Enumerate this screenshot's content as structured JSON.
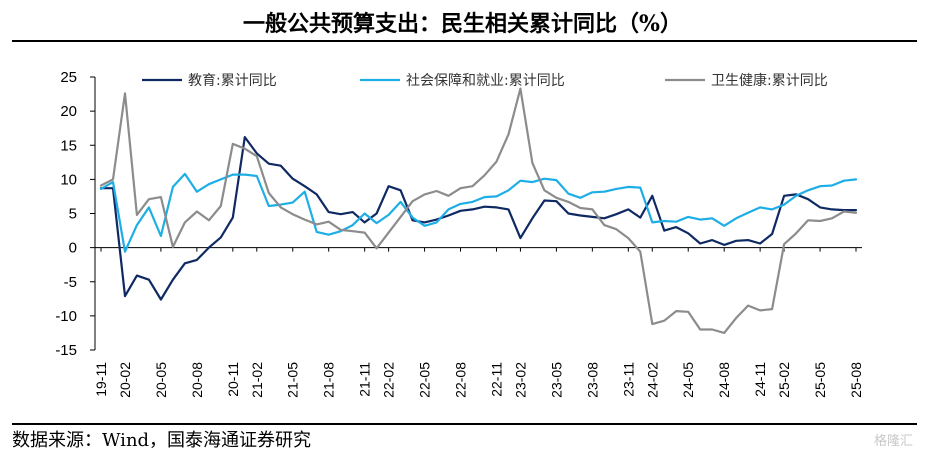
{
  "title": "一般公共预算支出：民生相关累计同比（%）",
  "source": "数据来源：Wind，国泰海通证券研究",
  "watermark": "格隆汇",
  "chart_data": {
    "type": "line",
    "title": "一般公共预算支出：民生相关累计同比（%）",
    "ylim": [
      -15,
      25
    ],
    "yticks": [
      -15,
      -10,
      -5,
      0,
      5,
      10,
      15,
      20,
      25
    ],
    "grid": false,
    "legend_position": "top",
    "x": [
      "19-11",
      "19-12",
      "20-02",
      "20-03",
      "20-04",
      "20-05",
      "20-06",
      "20-07",
      "20-08",
      "20-09",
      "20-10",
      "20-11",
      "20-12",
      "21-02",
      "21-03",
      "21-04",
      "21-05",
      "21-06",
      "21-07",
      "21-08",
      "21-09",
      "21-10",
      "21-11",
      "21-12",
      "22-02",
      "22-03",
      "22-04",
      "22-05",
      "22-06",
      "22-07",
      "22-08",
      "22-09",
      "22-10",
      "22-11",
      "22-12",
      "23-02",
      "23-03",
      "23-04",
      "23-05",
      "23-06",
      "23-07",
      "23-08",
      "23-09",
      "23-10",
      "23-11",
      "23-12",
      "24-02",
      "24-03",
      "24-04",
      "24-05",
      "24-06",
      "24-07",
      "24-08",
      "24-09",
      "24-10",
      "24-11",
      "24-12",
      "25-02",
      "25-03",
      "25-04",
      "25-05",
      "25-06",
      "25-07",
      "25-08"
    ],
    "xtick_labels": [
      "19-11",
      "20-02",
      "20-05",
      "20-08",
      "20-11",
      "21-02",
      "21-05",
      "21-08",
      "21-11",
      "22-02",
      "22-05",
      "22-08",
      "22-11",
      "23-02",
      "23-05",
      "23-08",
      "23-11",
      "24-02",
      "24-05",
      "24-08",
      "24-11",
      "25-02",
      "25-05",
      "25-08"
    ],
    "series": [
      {
        "name": "教育:累计同比",
        "color": "#0f2a63",
        "values": [
          8.7,
          8.7,
          -7.1,
          -4.1,
          -4.7,
          -7.6,
          -4.7,
          -2.3,
          -1.8,
          0,
          1.5,
          4.4,
          16.2,
          13.8,
          12.3,
          12.0,
          10.1,
          9.0,
          7.8,
          5.2,
          4.9,
          5.2,
          3.7,
          5.0,
          9.0,
          8.4,
          4.0,
          3.7,
          4.1,
          4.7,
          5.4,
          5.6,
          6.0,
          5.9,
          5.6,
          1.4,
          4.3,
          6.9,
          6.8,
          5.0,
          4.7,
          4.5,
          4.3,
          4.9,
          5.6,
          4.4,
          7.6,
          2.5,
          3.0,
          2.1,
          0.6,
          1.1,
          0.4,
          1.0,
          1.1,
          0.6,
          2.0,
          7.6,
          7.8,
          7.1,
          5.9,
          5.6,
          5.5,
          5.5
        ]
      },
      {
        "name": "社会保障和就业:累计同比",
        "color": "#1eaee6",
        "values": [
          8.6,
          9.6,
          -0.6,
          3.3,
          5.9,
          1.7,
          8.9,
          10.8,
          8.2,
          9.3,
          10.0,
          10.7,
          10.7,
          10.5,
          6.1,
          6.3,
          6.6,
          8.2,
          2.3,
          1.9,
          2.4,
          3.3,
          5.0,
          3.6,
          4.8,
          6.7,
          4.4,
          3.2,
          3.7,
          5.6,
          6.4,
          6.7,
          7.4,
          7.5,
          8.4,
          9.8,
          9.6,
          10.1,
          9.9,
          7.9,
          7.3,
          8.1,
          8.2,
          8.6,
          8.9,
          8.8,
          3.7,
          3.9,
          3.8,
          4.5,
          4.1,
          4.3,
          3.2,
          4.3,
          5.1,
          5.9,
          5.6,
          6.3,
          7.6,
          8.4,
          9.0,
          9.1,
          9.8,
          10.0
        ]
      },
      {
        "name": "卫生健康:累计同比",
        "color": "#8c8c8c",
        "values": [
          9.1,
          10.0,
          22.6,
          4.8,
          7.1,
          7.4,
          0.1,
          3.7,
          5.3,
          4.0,
          6.1,
          15.2,
          14.5,
          13.4,
          8.0,
          5.9,
          4.9,
          4.1,
          3.4,
          3.8,
          2.6,
          2.4,
          2.2,
          -0.1,
          2.2,
          4.5,
          6.8,
          7.8,
          8.3,
          7.6,
          8.7,
          9.0,
          10.6,
          12.6,
          16.6,
          23.3,
          12.4,
          8.4,
          7.3,
          6.7,
          5.8,
          5.6,
          3.3,
          2.7,
          1.4,
          -0.6,
          -11.2,
          -10.7,
          -9.3,
          -9.4,
          -12.0,
          -12.0,
          -12.5,
          -10.3,
          -8.5,
          -9.2,
          -9.0,
          0.5,
          2.1,
          4.0,
          3.9,
          4.3,
          5.3,
          5.1
        ]
      }
    ]
  }
}
